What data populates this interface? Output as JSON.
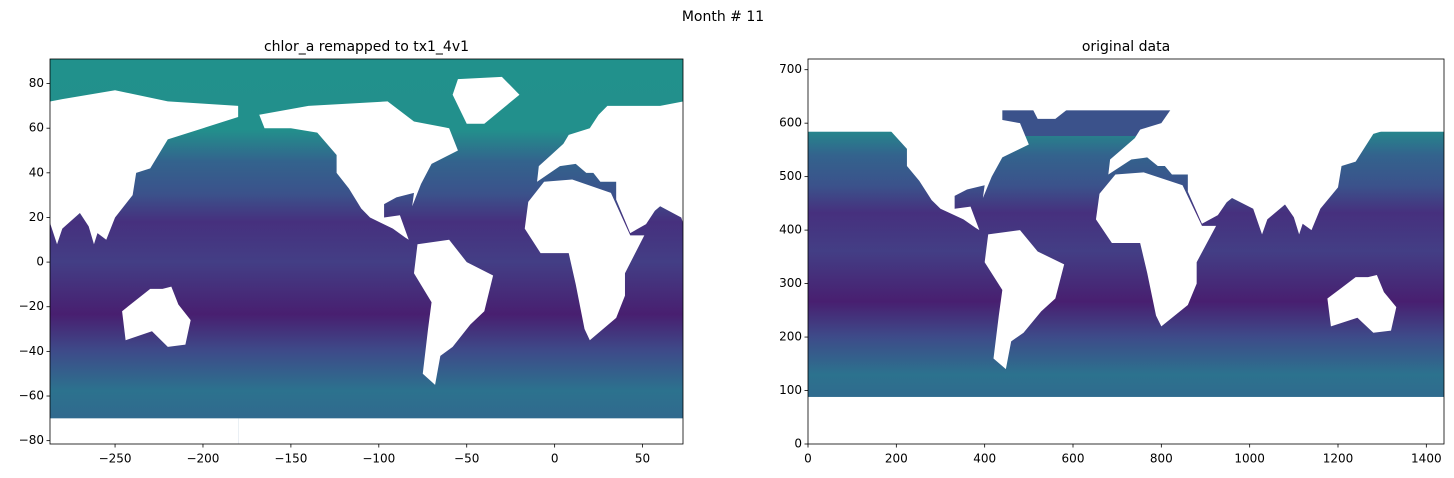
{
  "figure_title": "Month # 11",
  "chart_data": [
    {
      "type": "image",
      "title": "chlor_a remapped to tx1_4v1",
      "xlim": [
        -287,
        73
      ],
      "ylim": [
        -81.5,
        91
      ],
      "xticks": [
        {
          "value": -250,
          "label": "−250"
        },
        {
          "value": -200,
          "label": "−200"
        },
        {
          "value": -150,
          "label": "−150"
        },
        {
          "value": -100,
          "label": "−100"
        },
        {
          "value": -50,
          "label": "−50"
        },
        0,
        50
      ],
      "yticks": [
        {
          "value": -80,
          "label": "−80"
        },
        {
          "value": -60,
          "label": "−60"
        },
        {
          "value": -40,
          "label": "−40"
        },
        {
          "value": -20,
          "label": "−20"
        },
        0,
        20,
        40,
        60,
        80
      ]
    },
    {
      "type": "image",
      "title": "original data",
      "xlim": [
        0,
        1440
      ],
      "ylim": [
        0,
        720
      ],
      "xticks": [
        0,
        200,
        400,
        600,
        800,
        1000,
        1200,
        1400
      ],
      "yticks": [
        0,
        100,
        200,
        300,
        400,
        500,
        600,
        700
      ]
    }
  ]
}
